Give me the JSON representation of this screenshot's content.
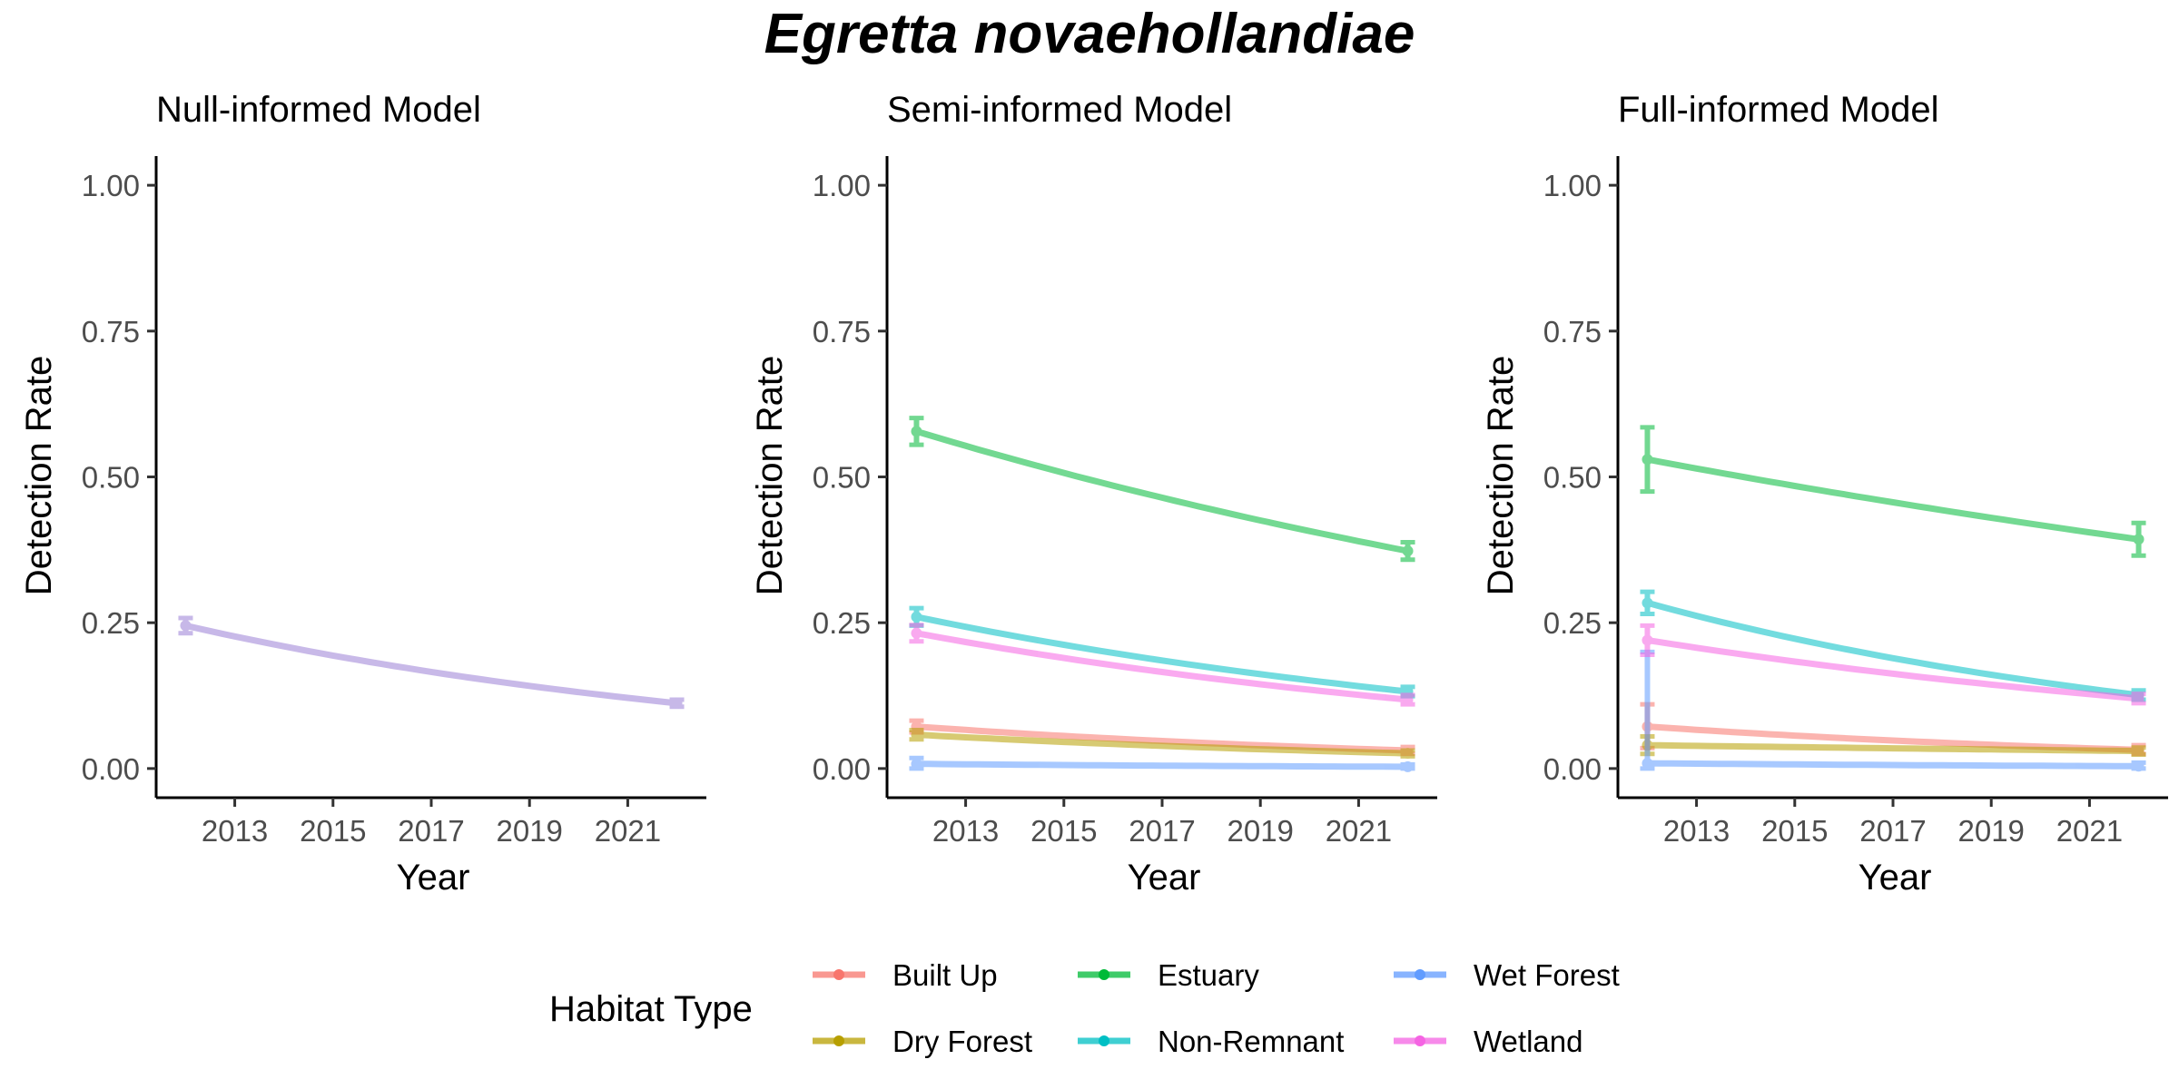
{
  "title": "Egretta novaehollandiae",
  "legend": {
    "title": "Habitat Type",
    "position": "bottom",
    "items": [
      {
        "name": "Built Up",
        "color": "#F8766D"
      },
      {
        "name": "Estuary",
        "color": "#00BA38"
      },
      {
        "name": "Wet Forest",
        "color": "#619CFF"
      },
      {
        "name": "Dry Forest",
        "color": "#B79F00"
      },
      {
        "name": "Non-Remnant",
        "color": "#00BFC4"
      },
      {
        "name": "Wetland",
        "color": "#F564E3"
      }
    ]
  },
  "chart_data": [
    {
      "type": "line",
      "title": "Null-informed Model",
      "xlabel": "Year",
      "ylabel": "Detection Rate",
      "xlim": [
        2011.4,
        2022.6
      ],
      "ylim": [
        -0.05,
        1.05
      ],
      "xticks": [
        "2013",
        "2015",
        "2017",
        "2019",
        "2021"
      ],
      "yticks": [
        "0.00",
        "0.25",
        "0.50",
        "0.75",
        "1.00"
      ],
      "grid": false,
      "series": [
        {
          "color": "#9A7FD6",
          "points": [
            {
              "x": 2012,
              "y": 0.245,
              "lo": 0.232,
              "hi": 0.258
            },
            {
              "x": 2022,
              "y": 0.112,
              "lo": 0.106,
              "hi": 0.118
            }
          ]
        }
      ]
    },
    {
      "type": "line",
      "title": "Semi-informed Model",
      "xlabel": "Year",
      "ylabel": "Detection Rate",
      "xlim": [
        2011.4,
        2022.6
      ],
      "ylim": [
        -0.05,
        1.05
      ],
      "xticks": [
        "2013",
        "2015",
        "2017",
        "2019",
        "2021"
      ],
      "yticks": [
        "0.00",
        "0.25",
        "0.50",
        "0.75",
        "1.00"
      ],
      "grid": false,
      "series": [
        {
          "name": "Built Up",
          "points": [
            {
              "x": 2012,
              "y": 0.072,
              "lo": 0.062,
              "hi": 0.082
            },
            {
              "x": 2022,
              "y": 0.031,
              "lo": 0.025,
              "hi": 0.037
            }
          ]
        },
        {
          "name": "Dry Forest",
          "points": [
            {
              "x": 2012,
              "y": 0.058,
              "lo": 0.05,
              "hi": 0.066
            },
            {
              "x": 2022,
              "y": 0.026,
              "lo": 0.021,
              "hi": 0.031
            }
          ]
        },
        {
          "name": "Estuary",
          "points": [
            {
              "x": 2012,
              "y": 0.578,
              "lo": 0.555,
              "hi": 0.601
            },
            {
              "x": 2022,
              "y": 0.373,
              "lo": 0.358,
              "hi": 0.388
            }
          ]
        },
        {
          "name": "Non-Remnant",
          "points": [
            {
              "x": 2012,
              "y": 0.26,
              "lo": 0.245,
              "hi": 0.275
            },
            {
              "x": 2022,
              "y": 0.132,
              "lo": 0.124,
              "hi": 0.14
            }
          ]
        },
        {
          "name": "Wet Forest",
          "points": [
            {
              "x": 2012,
              "y": 0.008,
              "lo": 0.0,
              "hi": 0.018
            },
            {
              "x": 2022,
              "y": 0.003,
              "lo": 0.0,
              "hi": 0.007
            }
          ]
        },
        {
          "name": "Wetland",
          "points": [
            {
              "x": 2012,
              "y": 0.232,
              "lo": 0.218,
              "hi": 0.246
            },
            {
              "x": 2022,
              "y": 0.118,
              "lo": 0.11,
              "hi": 0.126
            }
          ]
        }
      ]
    },
    {
      "type": "line",
      "title": "Full-informed Model",
      "xlabel": "Year",
      "ylabel": "Detection Rate",
      "xlim": [
        2011.4,
        2022.6
      ],
      "ylim": [
        -0.05,
        1.05
      ],
      "xticks": [
        "2013",
        "2015",
        "2017",
        "2019",
        "2021"
      ],
      "yticks": [
        "0.00",
        "0.25",
        "0.50",
        "0.75",
        "1.00"
      ],
      "grid": false,
      "series": [
        {
          "name": "Built Up",
          "points": [
            {
              "x": 2012,
              "y": 0.072,
              "lo": 0.035,
              "hi": 0.11
            },
            {
              "x": 2022,
              "y": 0.032,
              "lo": 0.025,
              "hi": 0.04
            }
          ]
        },
        {
          "name": "Dry Forest",
          "points": [
            {
              "x": 2012,
              "y": 0.04,
              "lo": 0.025,
              "hi": 0.055
            },
            {
              "x": 2022,
              "y": 0.03,
              "lo": 0.024,
              "hi": 0.036
            }
          ]
        },
        {
          "name": "Estuary",
          "points": [
            {
              "x": 2012,
              "y": 0.53,
              "lo": 0.475,
              "hi": 0.585
            },
            {
              "x": 2022,
              "y": 0.393,
              "lo": 0.365,
              "hi": 0.421
            }
          ]
        },
        {
          "name": "Non-Remnant",
          "points": [
            {
              "x": 2012,
              "y": 0.284,
              "lo": 0.265,
              "hi": 0.303
            },
            {
              "x": 2022,
              "y": 0.126,
              "lo": 0.118,
              "hi": 0.134
            }
          ]
        },
        {
          "name": "Wet Forest",
          "points": [
            {
              "x": 2012,
              "y": 0.009,
              "lo": 0.0,
              "hi": 0.2
            },
            {
              "x": 2022,
              "y": 0.004,
              "lo": 0.0,
              "hi": 0.01
            }
          ]
        },
        {
          "name": "Wetland",
          "points": [
            {
              "x": 2012,
              "y": 0.22,
              "lo": 0.195,
              "hi": 0.245
            },
            {
              "x": 2022,
              "y": 0.12,
              "lo": 0.112,
              "hi": 0.128
            }
          ]
        }
      ]
    }
  ]
}
